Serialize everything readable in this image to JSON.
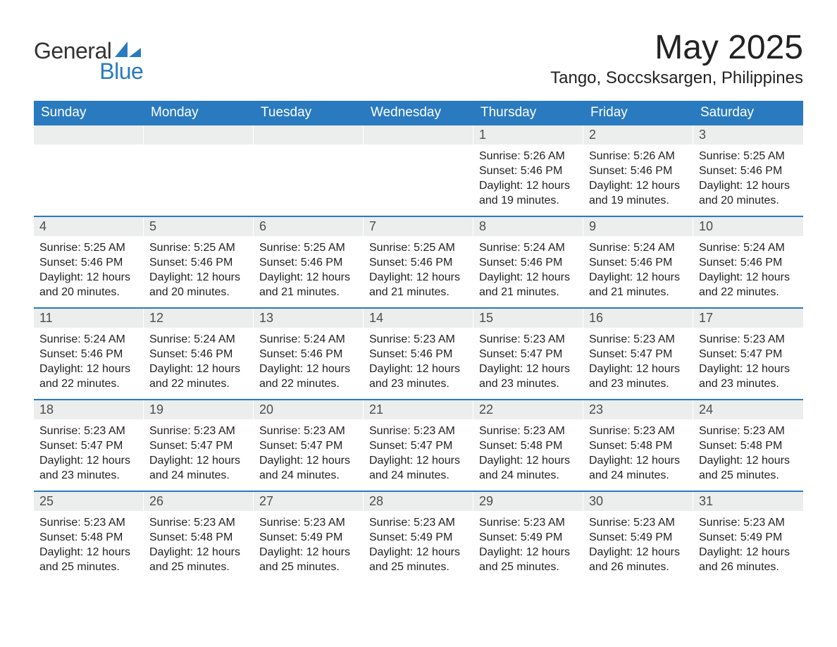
{
  "brand": {
    "word1": "General",
    "word2": "Blue",
    "word1_color": "#333333",
    "word2_color": "#2a7abf",
    "mark_color": "#2a7abf"
  },
  "title": "May 2025",
  "location": "Tango, Soccsksargen, Philippines",
  "colors": {
    "header_bg": "#2a7abf",
    "header_text": "#ffffff",
    "daynum_bg": "#eceded",
    "daynum_text": "#4d4d4d",
    "body_text": "#222222",
    "week_divider": "#2a7abf",
    "page_bg": "#ffffff"
  },
  "typography": {
    "title_fontsize": 48,
    "location_fontsize": 24,
    "dayhead_fontsize": 19,
    "daynum_fontsize": 18,
    "body_fontsize": 16
  },
  "day_headers": [
    "Sunday",
    "Monday",
    "Tuesday",
    "Wednesday",
    "Thursday",
    "Friday",
    "Saturday"
  ],
  "labels": {
    "sunrise": "Sunrise: ",
    "sunset": "Sunset: ",
    "daylight": "Daylight: "
  },
  "weeks": [
    [
      null,
      null,
      null,
      null,
      {
        "day": "1",
        "sunrise": "5:26 AM",
        "sunset": "5:46 PM",
        "daylight": "12 hours and 19 minutes."
      },
      {
        "day": "2",
        "sunrise": "5:26 AM",
        "sunset": "5:46 PM",
        "daylight": "12 hours and 19 minutes."
      },
      {
        "day": "3",
        "sunrise": "5:25 AM",
        "sunset": "5:46 PM",
        "daylight": "12 hours and 20 minutes."
      }
    ],
    [
      {
        "day": "4",
        "sunrise": "5:25 AM",
        "sunset": "5:46 PM",
        "daylight": "12 hours and 20 minutes."
      },
      {
        "day": "5",
        "sunrise": "5:25 AM",
        "sunset": "5:46 PM",
        "daylight": "12 hours and 20 minutes."
      },
      {
        "day": "6",
        "sunrise": "5:25 AM",
        "sunset": "5:46 PM",
        "daylight": "12 hours and 21 minutes."
      },
      {
        "day": "7",
        "sunrise": "5:25 AM",
        "sunset": "5:46 PM",
        "daylight": "12 hours and 21 minutes."
      },
      {
        "day": "8",
        "sunrise": "5:24 AM",
        "sunset": "5:46 PM",
        "daylight": "12 hours and 21 minutes."
      },
      {
        "day": "9",
        "sunrise": "5:24 AM",
        "sunset": "5:46 PM",
        "daylight": "12 hours and 21 minutes."
      },
      {
        "day": "10",
        "sunrise": "5:24 AM",
        "sunset": "5:46 PM",
        "daylight": "12 hours and 22 minutes."
      }
    ],
    [
      {
        "day": "11",
        "sunrise": "5:24 AM",
        "sunset": "5:46 PM",
        "daylight": "12 hours and 22 minutes."
      },
      {
        "day": "12",
        "sunrise": "5:24 AM",
        "sunset": "5:46 PM",
        "daylight": "12 hours and 22 minutes."
      },
      {
        "day": "13",
        "sunrise": "5:24 AM",
        "sunset": "5:46 PM",
        "daylight": "12 hours and 22 minutes."
      },
      {
        "day": "14",
        "sunrise": "5:23 AM",
        "sunset": "5:46 PM",
        "daylight": "12 hours and 23 minutes."
      },
      {
        "day": "15",
        "sunrise": "5:23 AM",
        "sunset": "5:47 PM",
        "daylight": "12 hours and 23 minutes."
      },
      {
        "day": "16",
        "sunrise": "5:23 AM",
        "sunset": "5:47 PM",
        "daylight": "12 hours and 23 minutes."
      },
      {
        "day": "17",
        "sunrise": "5:23 AM",
        "sunset": "5:47 PM",
        "daylight": "12 hours and 23 minutes."
      }
    ],
    [
      {
        "day": "18",
        "sunrise": "5:23 AM",
        "sunset": "5:47 PM",
        "daylight": "12 hours and 23 minutes."
      },
      {
        "day": "19",
        "sunrise": "5:23 AM",
        "sunset": "5:47 PM",
        "daylight": "12 hours and 24 minutes."
      },
      {
        "day": "20",
        "sunrise": "5:23 AM",
        "sunset": "5:47 PM",
        "daylight": "12 hours and 24 minutes."
      },
      {
        "day": "21",
        "sunrise": "5:23 AM",
        "sunset": "5:47 PM",
        "daylight": "12 hours and 24 minutes."
      },
      {
        "day": "22",
        "sunrise": "5:23 AM",
        "sunset": "5:48 PM",
        "daylight": "12 hours and 24 minutes."
      },
      {
        "day": "23",
        "sunrise": "5:23 AM",
        "sunset": "5:48 PM",
        "daylight": "12 hours and 24 minutes."
      },
      {
        "day": "24",
        "sunrise": "5:23 AM",
        "sunset": "5:48 PM",
        "daylight": "12 hours and 25 minutes."
      }
    ],
    [
      {
        "day": "25",
        "sunrise": "5:23 AM",
        "sunset": "5:48 PM",
        "daylight": "12 hours and 25 minutes."
      },
      {
        "day": "26",
        "sunrise": "5:23 AM",
        "sunset": "5:48 PM",
        "daylight": "12 hours and 25 minutes."
      },
      {
        "day": "27",
        "sunrise": "5:23 AM",
        "sunset": "5:49 PM",
        "daylight": "12 hours and 25 minutes."
      },
      {
        "day": "28",
        "sunrise": "5:23 AM",
        "sunset": "5:49 PM",
        "daylight": "12 hours and 25 minutes."
      },
      {
        "day": "29",
        "sunrise": "5:23 AM",
        "sunset": "5:49 PM",
        "daylight": "12 hours and 25 minutes."
      },
      {
        "day": "30",
        "sunrise": "5:23 AM",
        "sunset": "5:49 PM",
        "daylight": "12 hours and 26 minutes."
      },
      {
        "day": "31",
        "sunrise": "5:23 AM",
        "sunset": "5:49 PM",
        "daylight": "12 hours and 26 minutes."
      }
    ]
  ]
}
